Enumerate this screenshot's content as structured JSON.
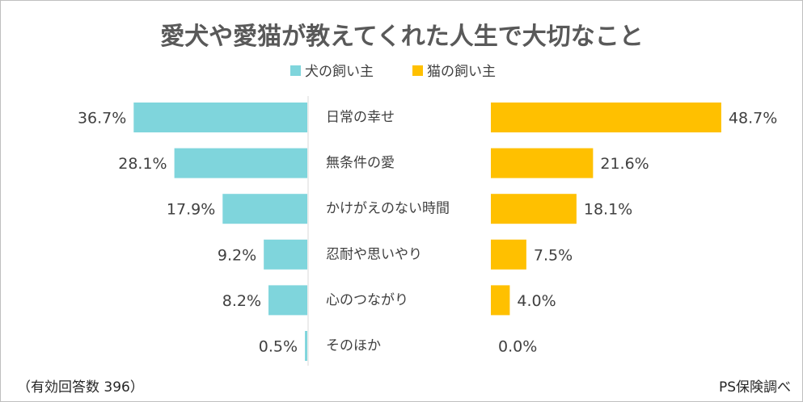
{
  "chart_data": {
    "type": "bar",
    "title": "愛犬や愛猫が教えてくれた人生で大切なこと",
    "categories": [
      "日常の幸せ",
      "無条件の愛",
      "かけがえのない時間",
      "忍耐や思いやり",
      "心のつながり",
      "そのほか"
    ],
    "series": [
      {
        "name": "犬の飼い主",
        "values": [
          36.7,
          28.1,
          17.9,
          9.2,
          8.2,
          0.5
        ],
        "labels": [
          "36.7%",
          "28.1%",
          "17.9%",
          "9.2%",
          "8.2%",
          "0.5%"
        ],
        "color": "#7fd5dc"
      },
      {
        "name": "猫の飼い主",
        "values": [
          48.7,
          21.6,
          18.1,
          7.5,
          4.0,
          0.0
        ],
        "labels": [
          "48.7%",
          "21.6%",
          "18.1%",
          "7.5%",
          "4.0%",
          "0.0%"
        ],
        "color": "#ffc000"
      }
    ],
    "legend": "top-center",
    "grid": false,
    "xlim": [
      0,
      50
    ]
  },
  "footer": {
    "respondents": "（有効回答数 396）",
    "source": "PS保険調べ"
  }
}
